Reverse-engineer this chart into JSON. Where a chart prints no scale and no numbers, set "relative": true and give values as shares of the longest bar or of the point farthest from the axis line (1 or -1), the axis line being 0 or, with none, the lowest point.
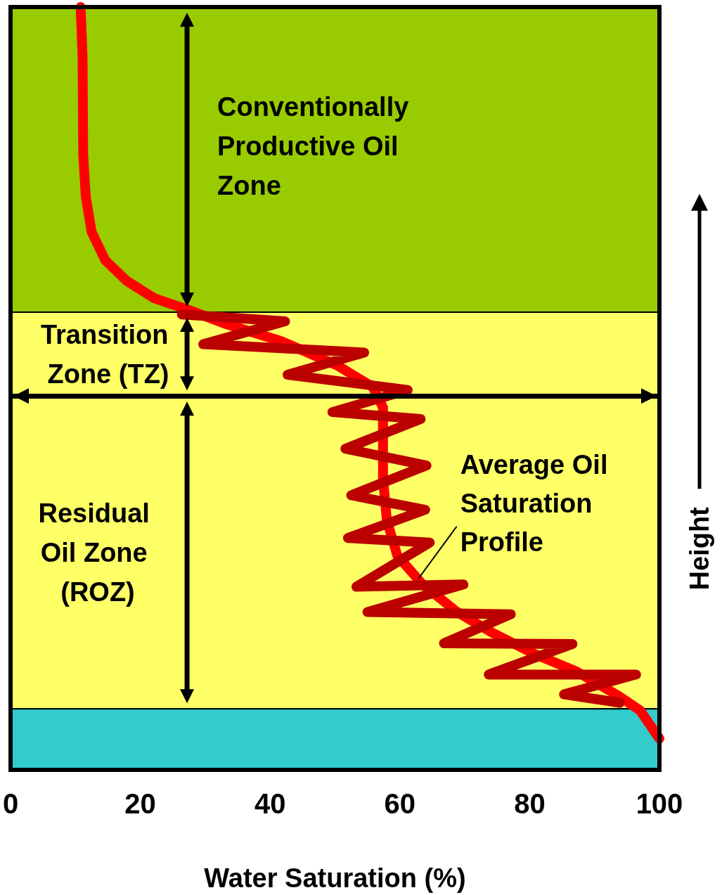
{
  "chart_data": {
    "type": "line",
    "relative": true,
    "xlabel": "Water Saturation (%)",
    "ylabel": "Height",
    "xlim": [
      0,
      100
    ],
    "xticks": [
      0,
      20,
      40,
      60,
      80,
      100
    ],
    "line_style": "solid",
    "series": [
      {
        "color": "#ff0000",
        "x": [
          10.8,
          11.1,
          11.2,
          11.6,
          12.5,
          14.6,
          17.9,
          22.2,
          27.1,
          33.0,
          41.7,
          50.4,
          55.8,
          57.4,
          57.4,
          57.4,
          58.0,
          59.6,
          63.4,
          68.8,
          74.2,
          80.7,
          87.2,
          93.7,
          97.0,
          100
        ],
        "values": [
          1.0,
          0.935,
          0.806,
          0.751,
          0.705,
          0.668,
          0.641,
          0.618,
          0.604,
          0.585,
          0.562,
          0.53,
          0.502,
          0.475,
          0.438,
          0.382,
          0.327,
          0.281,
          0.244,
          0.207,
          0.18,
          0.152,
          0.129,
          0.097,
          0.078,
          0.041
        ]
      },
      {
        "color": "#bb0000",
        "x": [
          26.4,
          42.3,
          29.7,
          54.5,
          42.7,
          61.2,
          49.6,
          63.2,
          51.6,
          64.1,
          52.5,
          63.9,
          52.0,
          64.6,
          53.3,
          69.8,
          55.0,
          77.1,
          66.8,
          86.6,
          73.7,
          96.4,
          85.3,
          93.9
        ],
        "values": [
          0.597,
          0.588,
          0.558,
          0.547,
          0.518,
          0.498,
          0.469,
          0.46,
          0.421,
          0.399,
          0.36,
          0.341,
          0.304,
          0.298,
          0.24,
          0.243,
          0.207,
          0.204,
          0.166,
          0.165,
          0.125,
          0.125,
          0.099,
          0.088
        ]
      }
    ],
    "bands": [
      {
        "axis": "y",
        "from": 0.6,
        "to": 1.0,
        "label": "Conventionally Productive Oil Zone",
        "color": "#99cc00"
      },
      {
        "axis": "y",
        "from": 0.49,
        "to": 0.6,
        "label": "Transition Zone (TZ)",
        "color": "#ffff66"
      },
      {
        "axis": "y",
        "from": 0.08,
        "to": 0.49,
        "label": "Residual Oil Zone (ROZ)",
        "color": "#ffff66"
      },
      {
        "axis": "y",
        "from": 0,
        "to": 0.08,
        "color": "#33cccc"
      }
    ],
    "ref_lines": [
      {
        "axis": "y",
        "value": 0.49,
        "color": "#000000"
      }
    ],
    "annotations": [
      {
        "text": "Average Oil Saturation Profile",
        "x": 62.8,
        "y": 0.25
      }
    ]
  }
}
